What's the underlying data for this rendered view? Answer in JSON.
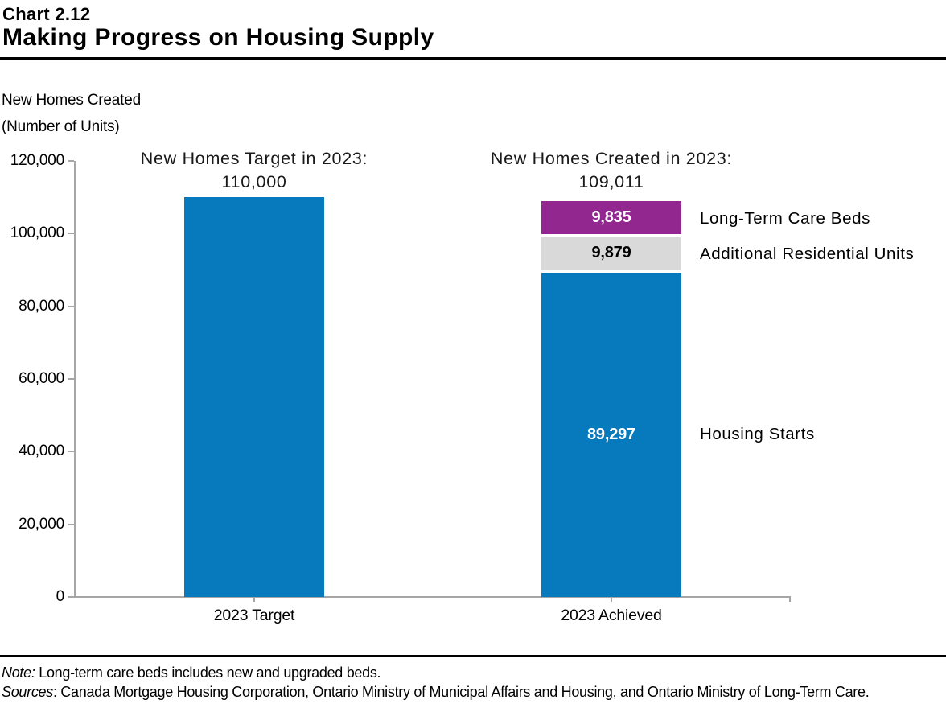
{
  "header": {
    "chart_number": "Chart 2.12",
    "title": "Making Progress on Housing Supply"
  },
  "y_axis_title": {
    "line1": "New Homes Created",
    "line2": "(Number of Units)"
  },
  "chart_data": {
    "type": "bar",
    "stacked": true,
    "title": "Making Progress on Housing Supply",
    "ylabel": "New Homes Created (Number of Units)",
    "xlabel": "",
    "ylim": [
      0,
      120000
    ],
    "y_tick_interval": 20000,
    "y_tick_labels": [
      "0",
      "20,000",
      "40,000",
      "60,000",
      "80,000",
      "100,000",
      "120,000"
    ],
    "grid": false,
    "legend_position": "labels-right-of-achieved-bar",
    "axis_color": "#A6A6A6",
    "categories": [
      "2023 Target",
      "2023 Achieved"
    ],
    "bars": [
      {
        "category": "2023 Target",
        "total": 110000,
        "annotation_line1": "New Homes Target in 2023:",
        "annotation_line2": "110,000",
        "segments": [
          {
            "name": "Housing Starts",
            "value": 110000,
            "color": "#077ABE",
            "label": "",
            "label_color": "#FFFFFF",
            "side_label": ""
          }
        ]
      },
      {
        "category": "2023 Achieved",
        "total": 109011,
        "annotation_line1": "New Homes Created in 2023:",
        "annotation_line2": "109,011",
        "segments": [
          {
            "name": "Housing Starts",
            "value": 89297,
            "color": "#077ABE",
            "label": "89,297",
            "label_color": "#FFFFFF",
            "side_label": "Housing Starts"
          },
          {
            "name": "Additional Residential Units",
            "value": 9879,
            "color": "#D9D9D9",
            "label": "9,879",
            "label_color": "#000000",
            "side_label": "Additional Residential Units"
          },
          {
            "name": "Long-Term Care Beds",
            "value": 9835,
            "color": "#92278F",
            "label": "9,835",
            "label_color": "#FFFFFF",
            "side_label": "Long-Term Care Beds"
          }
        ]
      }
    ]
  },
  "footer": {
    "note_label": "Note:",
    "note_text": " Long-term care beds includes new and upgraded beds.",
    "sources_label": "Sources",
    "sources_text": ": Canada Mortgage Housing Corporation, Ontario Ministry of Municipal Affairs and Housing, and Ontario Ministry of Long-Term Care."
  }
}
